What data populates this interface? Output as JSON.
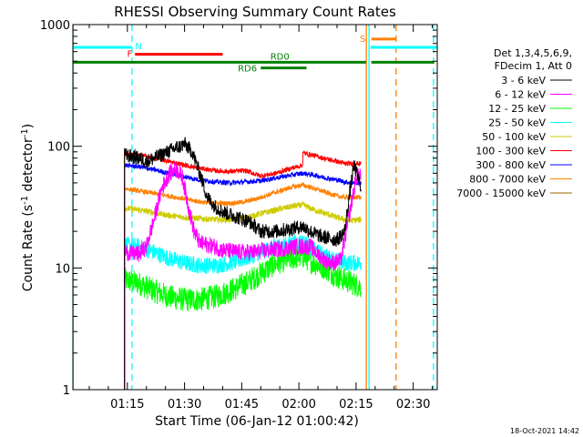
{
  "chart_data": {
    "type": "line",
    "title": "RHESSI Observing Summary Count Rates",
    "xlabel": "Start Time (06-Jan-12 01:00:42)",
    "ylabel_main": "Count Rate (s",
    "ylabel_sup": "-1",
    "ylabel_rest": " detector",
    "ylabel_close": ")",
    "yscale": "log",
    "ylim": [
      1,
      1000
    ],
    "xlim_minutes": [
      0.7,
      96.3
    ],
    "y_ticks": [
      {
        "value": 1,
        "label": "1"
      },
      {
        "value": 10,
        "label": "10"
      },
      {
        "value": 100,
        "label": "100"
      },
      {
        "value": 1000,
        "label": "1000"
      }
    ],
    "x_ticks": [
      {
        "minute": 15,
        "label": "01:15"
      },
      {
        "minute": 30,
        "label": "01:30"
      },
      {
        "minute": 45,
        "label": "01:45"
      },
      {
        "minute": 60,
        "label": "02:00"
      },
      {
        "minute": 75,
        "label": "02:15"
      },
      {
        "minute": 90,
        "label": "02:30"
      }
    ],
    "legend_title": [
      "Det 1,3,4,5,6,9,",
      "FDecim 1, Att 0"
    ],
    "series": [
      {
        "name": "3 - 6 keV",
        "color": "#000000",
        "noise": 0.06,
        "points": [
          [
            14.2,
            1
          ],
          [
            14.25,
            85
          ],
          [
            18,
            80
          ],
          [
            20,
            75
          ],
          [
            24,
            85
          ],
          [
            27,
            95
          ],
          [
            29,
            100
          ],
          [
            30,
            105
          ],
          [
            32,
            90
          ],
          [
            34,
            60
          ],
          [
            36,
            38
          ],
          [
            38,
            32
          ],
          [
            40,
            29
          ],
          [
            44,
            26
          ],
          [
            47,
            24
          ],
          [
            50,
            20
          ],
          [
            54,
            20
          ],
          [
            58,
            21
          ],
          [
            61,
            22
          ],
          [
            63,
            20
          ],
          [
            66,
            18
          ],
          [
            70,
            17
          ],
          [
            72,
            20
          ],
          [
            73.5,
            45
          ],
          [
            74.5,
            70
          ],
          [
            75.5,
            55
          ],
          [
            76.3,
            47
          ]
        ]
      },
      {
        "name": "6 - 12 keV",
        "color": "#ff00ff",
        "noise": 0.07,
        "points": [
          [
            14.2,
            1
          ],
          [
            14.25,
            13.5
          ],
          [
            18,
            13
          ],
          [
            20,
            15
          ],
          [
            22,
            25
          ],
          [
            24,
            45
          ],
          [
            26,
            60
          ],
          [
            28,
            65
          ],
          [
            29.5,
            55
          ],
          [
            31,
            32
          ],
          [
            32.5,
            20
          ],
          [
            34,
            16
          ],
          [
            38,
            15
          ],
          [
            40,
            14
          ],
          [
            44,
            13.5
          ],
          [
            48,
            13.5
          ],
          [
            52,
            14
          ],
          [
            56,
            14.5
          ],
          [
            60,
            15
          ],
          [
            63,
            15
          ],
          [
            65,
            13
          ],
          [
            67,
            11.5
          ],
          [
            69,
            11
          ],
          [
            71,
            11.5
          ],
          [
            73,
            25
          ],
          [
            75,
            55
          ],
          [
            76.3,
            60
          ]
        ]
      },
      {
        "name": "12 - 25 keV",
        "color": "#00ff00",
        "noise": 0.1,
        "points": [
          [
            14.2,
            1
          ],
          [
            14.25,
            8
          ],
          [
            18,
            7.5
          ],
          [
            22,
            6.5
          ],
          [
            26,
            5.8
          ],
          [
            30,
            5.5
          ],
          [
            34,
            5.5
          ],
          [
            38,
            5.8
          ],
          [
            42,
            6.5
          ],
          [
            46,
            7.5
          ],
          [
            50,
            9
          ],
          [
            54,
            11
          ],
          [
            58,
            12
          ],
          [
            61,
            12.5
          ],
          [
            64,
            11
          ],
          [
            67,
            10
          ],
          [
            70,
            8.5
          ],
          [
            72,
            8
          ],
          [
            74,
            7.5
          ],
          [
            76.3,
            7
          ]
        ]
      },
      {
        "name": "25 - 50 keV",
        "color": "#00ffff",
        "noise": 0.07,
        "points": [
          [
            14.2,
            1
          ],
          [
            14.25,
            15.5
          ],
          [
            18,
            15
          ],
          [
            22,
            13.5
          ],
          [
            26,
            12
          ],
          [
            30,
            11
          ],
          [
            34,
            10.5
          ],
          [
            38,
            10.5
          ],
          [
            42,
            11
          ],
          [
            46,
            12
          ],
          [
            50,
            13.5
          ],
          [
            54,
            15
          ],
          [
            58,
            16
          ],
          [
            61,
            16.5
          ],
          [
            64,
            14
          ],
          [
            67,
            12.5
          ],
          [
            70,
            11.5
          ],
          [
            72,
            11
          ],
          [
            74,
            11
          ],
          [
            76.3,
            11
          ]
        ]
      },
      {
        "name": "50 - 100 keV",
        "color": "#cccc00",
        "noise": 0.025,
        "points": [
          [
            14.2,
            1
          ],
          [
            14.25,
            31
          ],
          [
            18,
            30
          ],
          [
            22,
            28.5
          ],
          [
            26,
            27
          ],
          [
            30,
            26
          ],
          [
            34,
            25.5
          ],
          [
            38,
            25
          ],
          [
            42,
            25
          ],
          [
            46,
            26
          ],
          [
            50,
            28
          ],
          [
            54,
            30
          ],
          [
            58,
            32
          ],
          [
            61,
            33
          ],
          [
            64,
            30
          ],
          [
            67,
            28
          ],
          [
            70,
            26
          ],
          [
            72,
            25
          ],
          [
            74,
            24.5
          ],
          [
            76.3,
            25
          ]
        ]
      },
      {
        "name": "100 - 300 keV",
        "color": "#ff0000",
        "noise": 0.02,
        "points": [
          [
            14.2,
            1
          ],
          [
            14.25,
            88
          ],
          [
            18,
            85
          ],
          [
            22,
            80
          ],
          [
            26,
            75
          ],
          [
            30,
            70
          ],
          [
            34,
            66
          ],
          [
            38,
            63
          ],
          [
            42,
            62
          ],
          [
            46,
            63
          ],
          [
            50,
            57
          ],
          [
            54,
            60
          ],
          [
            58,
            66
          ],
          [
            61,
            70
          ],
          [
            61.05,
            88
          ],
          [
            64,
            84
          ],
          [
            67,
            79
          ],
          [
            70,
            75
          ],
          [
            72,
            72
          ],
          [
            74,
            72
          ],
          [
            76.3,
            72
          ]
        ]
      },
      {
        "name": "300 - 800 keV",
        "color": "#0000ff",
        "noise": 0.02,
        "points": [
          [
            14.2,
            1
          ],
          [
            14.25,
            70
          ],
          [
            18,
            68
          ],
          [
            22,
            64
          ],
          [
            26,
            60
          ],
          [
            30,
            56
          ],
          [
            34,
            53
          ],
          [
            38,
            51
          ],
          [
            42,
            50
          ],
          [
            46,
            51
          ],
          [
            50,
            52
          ],
          [
            54,
            55
          ],
          [
            58,
            58
          ],
          [
            61,
            60
          ],
          [
            64,
            58
          ],
          [
            67,
            55
          ],
          [
            70,
            53
          ],
          [
            72,
            51
          ],
          [
            74,
            50
          ],
          [
            76.3,
            50
          ]
        ]
      },
      {
        "name": "800 - 7000 keV",
        "color": "#ff8000",
        "noise": 0.02,
        "points": [
          [
            14.2,
            1
          ],
          [
            14.25,
            45
          ],
          [
            18,
            43
          ],
          [
            22,
            41
          ],
          [
            26,
            39
          ],
          [
            30,
            37
          ],
          [
            34,
            35
          ],
          [
            38,
            34
          ],
          [
            42,
            34
          ],
          [
            46,
            35
          ],
          [
            50,
            38
          ],
          [
            54,
            42
          ],
          [
            58,
            46
          ],
          [
            61,
            48
          ],
          [
            64,
            45
          ],
          [
            67,
            42
          ],
          [
            70,
            39
          ],
          [
            72,
            38
          ],
          [
            74,
            38
          ],
          [
            76.3,
            38
          ]
        ]
      },
      {
        "name": "7000 - 15000 keV",
        "color": "#996600",
        "noise": 0,
        "points": []
      }
    ],
    "state_bars": [
      {
        "label": "N",
        "color": "#00ffff",
        "value": 650,
        "segments": [
          [
            0.7,
            16
          ],
          [
            78.8,
            96.3
          ]
        ],
        "label_minute": 17,
        "label_pos": "after"
      },
      {
        "label": "F",
        "color": "#ff0000",
        "value": 570,
        "segments": [
          [
            17,
            40
          ]
        ],
        "label_minute": 16.3,
        "label_pos": "before"
      },
      {
        "label": "S",
        "color": "#ff8000",
        "value": 760,
        "segments": [
          [
            79,
            85.6
          ]
        ],
        "label_minute": 77.5,
        "label_pos": "before"
      },
      {
        "label": "RD0",
        "color": "#008000",
        "value": 490,
        "segments": [
          [
            0.7,
            77.6
          ],
          [
            79,
            95.5
          ]
        ],
        "label_minute": 55,
        "label_pos": "center"
      },
      {
        "label": "RD6",
        "color": "#008000",
        "value": 440,
        "segments": [
          [
            50,
            62
          ]
        ],
        "label_minute": 49,
        "label_pos": "before"
      }
    ],
    "vertical_lines": [
      {
        "minute": 16.2,
        "color": "#00ffff",
        "style": "dashed"
      },
      {
        "minute": 0.8,
        "color": "#00ffff",
        "style": "solid"
      },
      {
        "minute": 77.7,
        "color": "#ff8000",
        "style": "solid"
      },
      {
        "minute": 78.4,
        "color": "#00ffff",
        "style": "solid"
      },
      {
        "minute": 85.5,
        "color": "#ff8000",
        "style": "dashed"
      },
      {
        "minute": 95.3,
        "color": "#00ffff",
        "style": "dashed"
      }
    ],
    "timestamp": "18-Oct-2021 14:42"
  }
}
